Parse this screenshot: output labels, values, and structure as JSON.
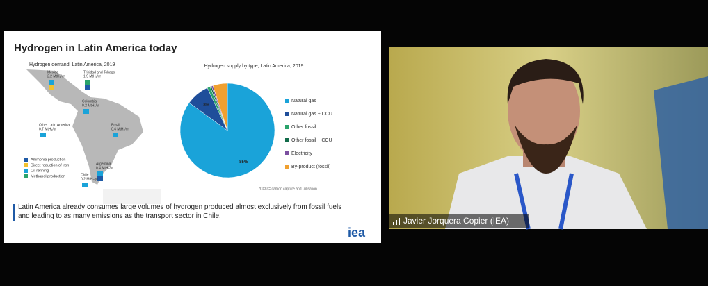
{
  "slide": {
    "title": "Hydrogen in Latin America today",
    "map_title": "Hydrogen demand, Latin America, 2019",
    "map_labels": [
      {
        "name": "Mexico",
        "amount": "2.2 MtH₂/yr"
      },
      {
        "name": "Trinidad and Tobago",
        "amount": "1.9 MtH₂/yr"
      },
      {
        "name": "Colombia",
        "amount": "0.2 MtH₂/yr"
      },
      {
        "name": "Other Latin America",
        "amount": "0.7 MtH₂/yr"
      },
      {
        "name": "Brazil",
        "amount": "0.4 MtH₂/yr"
      },
      {
        "name": "Argentina",
        "amount": "0.4 MtH₂/yr"
      },
      {
        "name": "Chile",
        "amount": "0.2 MtH₂/yr"
      }
    ],
    "map_legend": [
      {
        "name": "Ammonia production",
        "color": "#1f5aa6"
      },
      {
        "name": "Direct reduction of iron",
        "color": "#f2c230"
      },
      {
        "name": "Oil refining",
        "color": "#1aa3d9"
      },
      {
        "name": "Methanol production",
        "color": "#2aa36b"
      }
    ],
    "pie": {
      "type": "pie",
      "title": "Hydrogen supply by type, Latin America, 2019",
      "categories": [
        "Natural gas",
        "Natural gas + CCU",
        "Other fossil",
        "Other fossil + CCU",
        "Electricity",
        "By-product (fossil)"
      ],
      "values": [
        85,
        8,
        1,
        0.5,
        0.5,
        5
      ],
      "value_labels": [
        "85%",
        "8%",
        null,
        null,
        null,
        null
      ],
      "colors": [
        "#1aa3d9",
        "#1f4e9a",
        "#2aa36b",
        "#126b4a",
        "#7b4fa0",
        "#f0a030"
      ],
      "footnote": "*CCU = carbon capture and utilisation"
    },
    "body": "Latin America already consumes large volumes of hydrogen produced almost exclusively from fossil fuels and leading to as many emissions as the transport sector in Chile.",
    "logo": "iea"
  },
  "video": {
    "participant": "Javier Jorquera Copier (IEA)"
  }
}
